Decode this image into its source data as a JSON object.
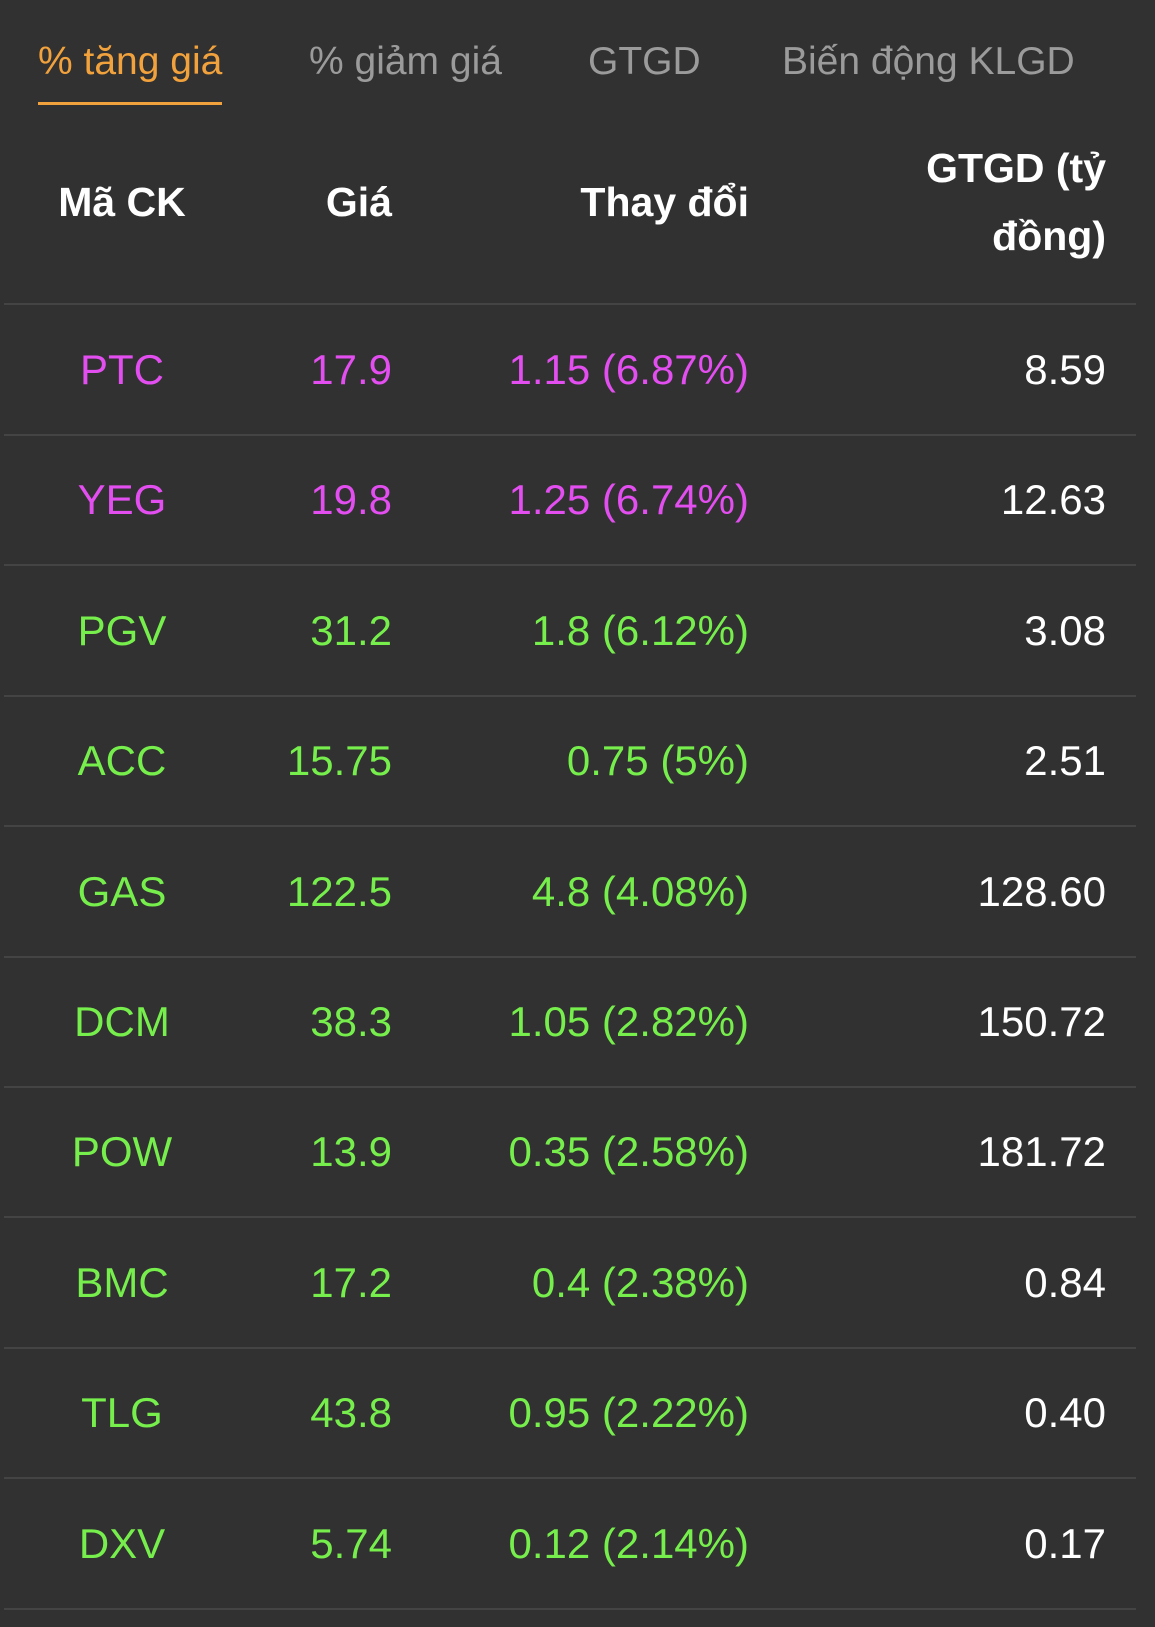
{
  "tabs": [
    "% tăng giá",
    "% giảm giá",
    "GTGD",
    "Biến động KLGD"
  ],
  "active_tab": 0,
  "table": {
    "header": [
      "Mã CK",
      "Giá",
      "Thay đổi",
      "GTGD (tỷ đồng)"
    ],
    "rows": [
      {
        "cells": [
          "PTC",
          "17.9",
          "1.15 (6.87%)",
          "8.59"
        ],
        "color": "#e34ef0"
      },
      {
        "cells": [
          "YEG",
          "19.8",
          "1.25 (6.74%)",
          "12.63"
        ],
        "color": "#e34ef0"
      },
      {
        "cells": [
          "PGV",
          "31.2",
          "1.8 (6.12%)",
          "3.08"
        ],
        "color": "#76ee4c"
      },
      {
        "cells": [
          "ACC",
          "15.75",
          "0.75 (5%)",
          "2.51"
        ],
        "color": "#76ee4c"
      },
      {
        "cells": [
          "GAS",
          "122.5",
          "4.8 (4.08%)",
          "128.60"
        ],
        "color": "#76ee4c"
      },
      {
        "cells": [
          "DCM",
          "38.3",
          "1.05 (2.82%)",
          "150.72"
        ],
        "color": "#76ee4c"
      },
      {
        "cells": [
          "POW",
          "13.9",
          "0.35 (2.58%)",
          "181.72"
        ],
        "color": "#76ee4c"
      },
      {
        "cells": [
          "BMC",
          "17.2",
          "0.4 (2.38%)",
          "0.84"
        ],
        "color": "#76ee4c"
      },
      {
        "cells": [
          "TLG",
          "43.8",
          "0.95 (2.22%)",
          "0.40"
        ],
        "color": "#76ee4c"
      },
      {
        "cells": [
          "DXV",
          "5.74",
          "0.12 (2.14%)",
          "0.17"
        ],
        "color": "#76ee4c"
      }
    ]
  }
}
